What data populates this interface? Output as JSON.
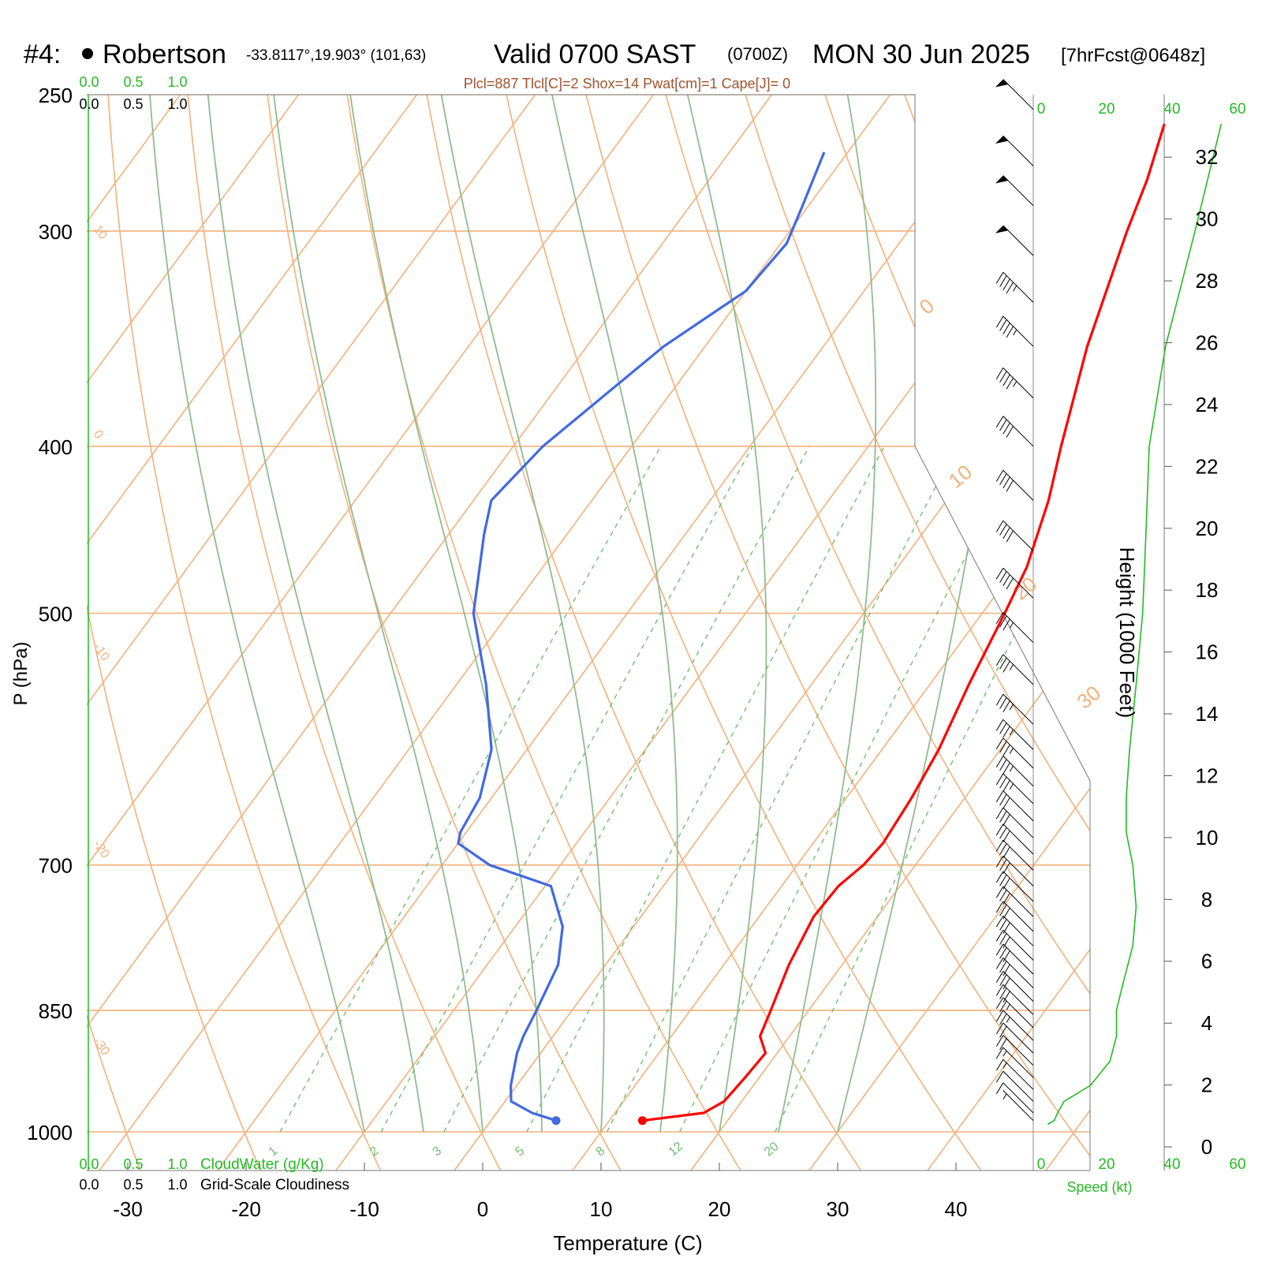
{
  "header": {
    "station_id": "#4:",
    "station_name": "Robertson",
    "coords": "-33.8117°,19.903° (101,63)",
    "valid": "Valid 0700 SAST",
    "zulu": "(0700Z)",
    "date": "MON 30 Jun 2025",
    "forecast": "[7hrFcst@0648z]",
    "indices": "Plcl=887 Tlcl[C]=2 Shox=14 Pwat[cm]=1 Cape[J]= 0"
  },
  "colors": {
    "temperature": "#ff0000",
    "dewpoint": "#4169e1",
    "isotherm": "#f5b07a",
    "dry_adiabat": "#f5b07a",
    "moist_adiabat": "#8fbc8f",
    "mixing_ratio": "#6fbf6f",
    "speed": "#22bb22",
    "indices_text": "#a0522d",
    "barb": "#000000"
  },
  "chart_data": {
    "type": "skew-t",
    "ylabel": "P (hPa)",
    "xlabel": "Temperature (C)",
    "height_label": "Height (1000 Feet)",
    "speed_label": "Speed (kt)",
    "cloudwater_label": "CloudWater (g/Kg)",
    "cloudiness_label": "Grid-Scale Cloudiness",
    "pressure_ticks": [
      250,
      300,
      400,
      500,
      700,
      850,
      1000
    ],
    "temperature_ticks": [
      -30,
      -20,
      -10,
      0,
      10,
      20,
      30,
      40
    ],
    "height_ticks_kft": [
      0,
      2,
      4,
      6,
      8,
      10,
      12,
      14,
      16,
      18,
      20,
      22,
      24,
      26,
      28,
      30,
      32
    ],
    "speed_ticks": [
      "0",
      "20",
      "40",
      "60"
    ],
    "cloud_ticks": [
      "0.0",
      "0.5",
      "1.0"
    ],
    "mixing_ratio_labels": [
      "1",
      "2",
      "3",
      "5",
      "8",
      "12",
      "20"
    ],
    "mixing_ratio_values": [
      1,
      2,
      3,
      5,
      8,
      12,
      20
    ],
    "dry_adiabat_labels_left": [
      "10",
      "0",
      "-10",
      "-20",
      "-30"
    ],
    "dry_adiabat_labels_right": [
      "0",
      "10",
      "20",
      "30"
    ],
    "temperature_profile": [
      {
        "p": 985,
        "t": 12.8
      },
      {
        "p": 975,
        "t": 17.5
      },
      {
        "p": 960,
        "t": 18.5
      },
      {
        "p": 930,
        "t": 18.8
      },
      {
        "p": 900,
        "t": 19.0
      },
      {
        "p": 880,
        "t": 17.5
      },
      {
        "p": 850,
        "t": 16.8
      },
      {
        "p": 800,
        "t": 15.5
      },
      {
        "p": 750,
        "t": 14.6
      },
      {
        "p": 720,
        "t": 14.8
      },
      {
        "p": 700,
        "t": 15.6
      },
      {
        "p": 680,
        "t": 15.9
      },
      {
        "p": 640,
        "t": 15.5
      },
      {
        "p": 600,
        "t": 14.8
      },
      {
        "p": 550,
        "t": 13.3
      },
      {
        "p": 500,
        "t": 11.9
      },
      {
        "p": 470,
        "t": 10.9
      },
      {
        "p": 430,
        "t": 8.6
      },
      {
        "p": 400,
        "t": 6.3
      },
      {
        "p": 350,
        "t": 2.3
      },
      {
        "p": 300,
        "t": -1.5
      },
      {
        "p": 280,
        "t": -3.0
      },
      {
        "p": 260,
        "t": -5.0
      }
    ],
    "dewpoint_profile": [
      {
        "p": 985,
        "t": 5.5
      },
      {
        "p": 975,
        "t": 3.0
      },
      {
        "p": 960,
        "t": 0.5
      },
      {
        "p": 940,
        "t": -0.5
      },
      {
        "p": 900,
        "t": -2.0
      },
      {
        "p": 880,
        "t": -2.5
      },
      {
        "p": 850,
        "t": -3.0
      },
      {
        "p": 800,
        "t": -4.0
      },
      {
        "p": 760,
        "t": -6.0
      },
      {
        "p": 720,
        "t": -9.5
      },
      {
        "p": 700,
        "t": -16.0
      },
      {
        "p": 680,
        "t": -20.0
      },
      {
        "p": 670,
        "t": -20.5
      },
      {
        "p": 640,
        "t": -21.0
      },
      {
        "p": 600,
        "t": -23.0
      },
      {
        "p": 550,
        "t": -27.5
      },
      {
        "p": 500,
        "t": -33.0
      },
      {
        "p": 450,
        "t": -37.0
      },
      {
        "p": 430,
        "t": -38.5
      },
      {
        "p": 400,
        "t": -37.5
      },
      {
        "p": 350,
        "t": -33.5
      },
      {
        "p": 325,
        "t": -30.0
      },
      {
        "p": 305,
        "t": -29.5
      },
      {
        "p": 290,
        "t": -30.5
      },
      {
        "p": 270,
        "t": -32.0
      }
    ],
    "wind_barbs": [
      {
        "p": 255,
        "kt": 50
      },
      {
        "p": 275,
        "kt": 50
      },
      {
        "p": 290,
        "kt": 50
      },
      {
        "p": 310,
        "kt": 50
      },
      {
        "p": 330,
        "kt": 45
      },
      {
        "p": 350,
        "kt": 45
      },
      {
        "p": 375,
        "kt": 45
      },
      {
        "p": 400,
        "kt": 40
      },
      {
        "p": 430,
        "kt": 40
      },
      {
        "p": 460,
        "kt": 40
      },
      {
        "p": 490,
        "kt": 40
      },
      {
        "p": 520,
        "kt": 35
      },
      {
        "p": 550,
        "kt": 35
      },
      {
        "p": 580,
        "kt": 35
      },
      {
        "p": 600,
        "kt": 35
      },
      {
        "p": 615,
        "kt": 35
      },
      {
        "p": 630,
        "kt": 35
      },
      {
        "p": 645,
        "kt": 35
      },
      {
        "p": 660,
        "kt": 30
      },
      {
        "p": 675,
        "kt": 30
      },
      {
        "p": 690,
        "kt": 30
      },
      {
        "p": 705,
        "kt": 30
      },
      {
        "p": 720,
        "kt": 30
      },
      {
        "p": 735,
        "kt": 30
      },
      {
        "p": 750,
        "kt": 30
      },
      {
        "p": 765,
        "kt": 30
      },
      {
        "p": 780,
        "kt": 30
      },
      {
        "p": 795,
        "kt": 30
      },
      {
        "p": 810,
        "kt": 30
      },
      {
        "p": 825,
        "kt": 30
      },
      {
        "p": 840,
        "kt": 30
      },
      {
        "p": 855,
        "kt": 30
      },
      {
        "p": 870,
        "kt": 25
      },
      {
        "p": 885,
        "kt": 25
      },
      {
        "p": 900,
        "kt": 20
      },
      {
        "p": 915,
        "kt": 20
      },
      {
        "p": 930,
        "kt": 15
      },
      {
        "p": 945,
        "kt": 15
      },
      {
        "p": 960,
        "kt": 10
      },
      {
        "p": 975,
        "kt": 10
      },
      {
        "p": 985,
        "kt": 5
      }
    ],
    "speed_profile": [
      {
        "p": 990,
        "kt": 2
      },
      {
        "p": 985,
        "kt": 4
      },
      {
        "p": 975,
        "kt": 5
      },
      {
        "p": 960,
        "kt": 7
      },
      {
        "p": 940,
        "kt": 15
      },
      {
        "p": 910,
        "kt": 21
      },
      {
        "p": 880,
        "kt": 23
      },
      {
        "p": 850,
        "kt": 23
      },
      {
        "p": 820,
        "kt": 25
      },
      {
        "p": 780,
        "kt": 28
      },
      {
        "p": 740,
        "kt": 29
      },
      {
        "p": 700,
        "kt": 28
      },
      {
        "p": 670,
        "kt": 26
      },
      {
        "p": 640,
        "kt": 26
      },
      {
        "p": 600,
        "kt": 27
      },
      {
        "p": 550,
        "kt": 29
      },
      {
        "p": 500,
        "kt": 31
      },
      {
        "p": 450,
        "kt": 32
      },
      {
        "p": 400,
        "kt": 33
      },
      {
        "p": 350,
        "kt": 38
      },
      {
        "p": 300,
        "kt": 47
      },
      {
        "p": 260,
        "kt": 55
      }
    ]
  }
}
